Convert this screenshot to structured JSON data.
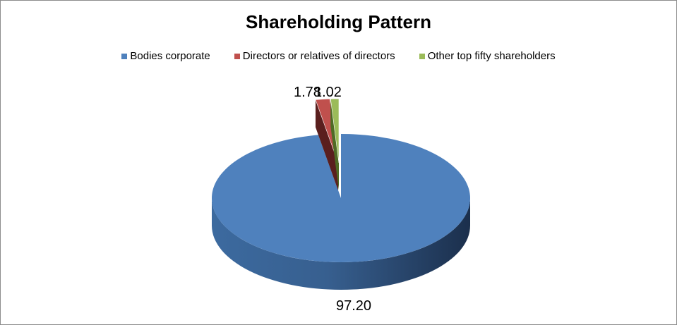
{
  "chart_data": {
    "type": "pie",
    "title": "Shareholding Pattern",
    "legend_position": "top",
    "series": [
      {
        "name": "Bodies corporate",
        "value": 97.2,
        "label": "97.20",
        "color": "#4f81bd"
      },
      {
        "name": "Directors or relatives of directors",
        "value": 1.78,
        "label": "1.78",
        "color": "#c0504d"
      },
      {
        "name": "Other top fifty shareholders",
        "value": 1.02,
        "label": "1.02",
        "color": "#9bbb59"
      }
    ]
  }
}
